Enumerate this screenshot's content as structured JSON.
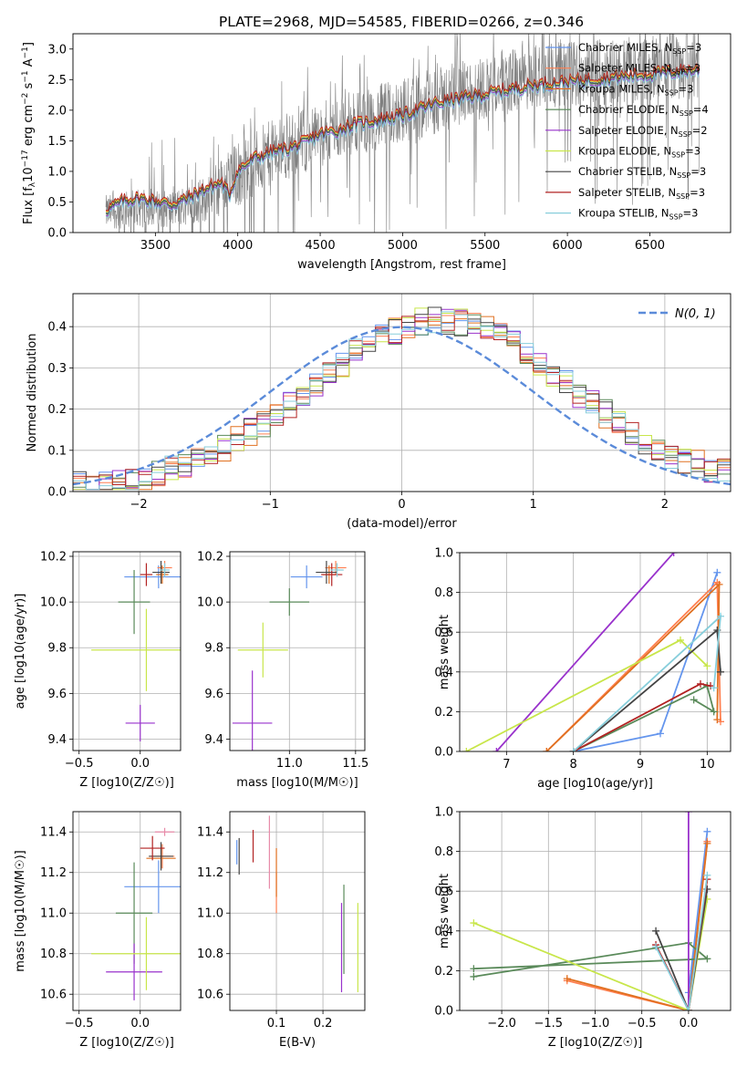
{
  "page_title": "PLATE=2968, MJD=54585, FIBERID=0266, z=0.346",
  "chart_data": [
    {
      "id": "spectrum",
      "type": "line",
      "xlabel": "wavelength [Angstrom, rest frame]",
      "ylabel": "Flux [f_λ 10^-17 erg cm^-2 s^-1 A^-1]",
      "xlim": [
        3000,
        6990
      ],
      "ylim": [
        0,
        3.25
      ],
      "xticks": [
        3500,
        4000,
        4500,
        5000,
        5500,
        6000,
        6500
      ],
      "yticks": [
        0.0,
        0.5,
        1.0,
        1.5,
        2.0,
        2.5,
        3.0
      ],
      "grid": false,
      "legend_position": "top-right",
      "data_range": [
        3200,
        6800
      ],
      "data_continuum": [
        [
          3200,
          0.33
        ],
        [
          3400,
          0.4
        ],
        [
          3600,
          0.38
        ],
        [
          3800,
          0.55
        ],
        [
          4000,
          0.95
        ],
        [
          4200,
          1.3
        ],
        [
          4400,
          1.5
        ],
        [
          4600,
          1.7
        ],
        [
          4800,
          1.85
        ],
        [
          5000,
          2.0
        ],
        [
          5200,
          2.15
        ],
        [
          5400,
          2.3
        ],
        [
          5600,
          2.45
        ],
        [
          5800,
          2.55
        ],
        [
          6000,
          2.6
        ],
        [
          6200,
          2.62
        ],
        [
          6400,
          2.65
        ],
        [
          6600,
          2.7
        ],
        [
          6800,
          2.72
        ]
      ],
      "series": [
        {
          "name": "Chabrier MILES, N_SSP=3",
          "color": "#6495ed"
        },
        {
          "name": "Salpeter MILES, N_SSP=3",
          "color": "#ff7f50"
        },
        {
          "name": "Kroupa MILES, N_SSP=3",
          "color": "#e07020"
        },
        {
          "name": "Chabrier ELODIE, N_SSP=4",
          "color": "#5a8a5a"
        },
        {
          "name": "Salpeter ELODIE, N_SSP=2",
          "color": "#9932cc"
        },
        {
          "name": "Kroupa ELODIE, N_SSP=3",
          "color": "#c8e64a"
        },
        {
          "name": "Chabrier STELIB, N_SSP=3",
          "color": "#444444"
        },
        {
          "name": "Salpeter STELIB, N_SSP=3",
          "color": "#b22222"
        },
        {
          "name": "Kroupa STELIB, N_SSP=3",
          "color": "#87cedb"
        }
      ],
      "model_continuum": [
        [
          3200,
          0.35
        ],
        [
          3300,
          0.5
        ],
        [
          3400,
          0.55
        ],
        [
          3500,
          0.5
        ],
        [
          3600,
          0.45
        ],
        [
          3700,
          0.55
        ],
        [
          3800,
          0.7
        ],
        [
          3900,
          0.8
        ],
        [
          3950,
          0.6
        ],
        [
          4000,
          1.0
        ],
        [
          4100,
          1.2
        ],
        [
          4200,
          1.3
        ],
        [
          4300,
          1.35
        ],
        [
          4400,
          1.45
        ],
        [
          4500,
          1.6
        ],
        [
          4600,
          1.65
        ],
        [
          4700,
          1.75
        ],
        [
          4800,
          1.8
        ],
        [
          4900,
          1.85
        ],
        [
          5000,
          1.9
        ],
        [
          5100,
          2.0
        ],
        [
          5200,
          2.1
        ],
        [
          5300,
          2.15
        ],
        [
          5400,
          2.2
        ],
        [
          5500,
          2.25
        ],
        [
          5600,
          2.3
        ],
        [
          5800,
          2.4
        ],
        [
          6000,
          2.45
        ],
        [
          6200,
          2.5
        ],
        [
          6400,
          2.55
        ],
        [
          6600,
          2.6
        ],
        [
          6800,
          2.65
        ]
      ]
    },
    {
      "id": "residuals",
      "type": "line",
      "xlabel": "(data-model)/error",
      "ylabel": "Normed distribution",
      "xlim": [
        -2.5,
        2.5
      ],
      "ylim": [
        0,
        0.48
      ],
      "xticks": [
        -2,
        -1,
        0,
        1,
        2
      ],
      "yticks": [
        0.0,
        0.1,
        0.2,
        0.3,
        0.4
      ],
      "grid": true,
      "legend_position": "top-right",
      "legend_label": "N(0, 1)",
      "gaussian_color": "#5b8bd9"
    },
    {
      "id": "age-vs-Z",
      "type": "scatter",
      "xlabel": "Z [log10(Z/Z☉)]",
      "ylabel": "age [log10(age/yr)]",
      "xlim": [
        -0.55,
        0.33
      ],
      "ylim": [
        9.35,
        10.22
      ],
      "xticks": [
        -0.5,
        0.0
      ],
      "yticks": [
        9.4,
        9.6,
        9.8,
        10.0,
        10.2
      ],
      "grid": true,
      "errorbars": [
        {
          "x": 0.15,
          "y": 10.11,
          "xerr": 0.28,
          "yerr": 0.05,
          "color": "#6495ed"
        },
        {
          "x": 0.2,
          "y": 10.15,
          "xerr": 0.06,
          "yerr": 0.03,
          "color": "#ff7f50"
        },
        {
          "x": 0.18,
          "y": 10.12,
          "xerr": 0.05,
          "yerr": 0.04,
          "color": "#e07020"
        },
        {
          "x": -0.05,
          "y": 10.0,
          "xerr": 0.13,
          "yerr": 0.14,
          "color": "#5a8a5a"
        },
        {
          "x": 0.0,
          "y": 9.47,
          "xerr": 0.12,
          "yerr": 0.08,
          "color": "#9932cc"
        },
        {
          "x": 0.05,
          "y": 9.79,
          "xerr": 0.45,
          "yerr": 0.18,
          "color": "#c8e64a"
        },
        {
          "x": 0.17,
          "y": 10.13,
          "xerr": 0.07,
          "yerr": 0.05,
          "color": "#444444"
        },
        {
          "x": 0.05,
          "y": 10.12,
          "xerr": 0.05,
          "yerr": 0.05,
          "color": "#b22222"
        },
        {
          "x": 0.2,
          "y": 10.14,
          "xerr": 0.04,
          "yerr": 0.03,
          "color": "#87cedb"
        }
      ]
    },
    {
      "id": "age-vs-mass",
      "type": "scatter",
      "xlabel": "mass [log10(M/M☉)]",
      "ylabel": "",
      "xlim": [
        10.55,
        11.57
      ],
      "ylim": [
        9.35,
        10.22
      ],
      "xticks": [
        11.0,
        11.5
      ],
      "yticks": [
        9.4,
        9.6,
        9.8,
        10.0,
        10.2
      ],
      "grid": true,
      "errorbars": [
        {
          "x": 11.13,
          "y": 10.11,
          "xerr": 0.12,
          "yerr": 0.05,
          "color": "#6495ed"
        },
        {
          "x": 11.35,
          "y": 10.15,
          "xerr": 0.08,
          "yerr": 0.03,
          "color": "#ff7f50"
        },
        {
          "x": 11.3,
          "y": 10.12,
          "xerr": 0.05,
          "yerr": 0.04,
          "color": "#e07020"
        },
        {
          "x": 11.0,
          "y": 10.0,
          "xerr": 0.15,
          "yerr": 0.06,
          "color": "#5a8a5a"
        },
        {
          "x": 10.72,
          "y": 9.47,
          "xerr": 0.15,
          "yerr": 0.23,
          "color": "#9932cc"
        },
        {
          "x": 10.8,
          "y": 9.79,
          "xerr": 0.19,
          "yerr": 0.12,
          "color": "#c8e64a"
        },
        {
          "x": 11.28,
          "y": 10.13,
          "xerr": 0.08,
          "yerr": 0.05,
          "color": "#444444"
        },
        {
          "x": 11.32,
          "y": 10.12,
          "xerr": 0.08,
          "yerr": 0.05,
          "color": "#b22222"
        },
        {
          "x": 11.36,
          "y": 10.14,
          "xerr": 0.05,
          "yerr": 0.03,
          "color": "#87cedb"
        }
      ]
    },
    {
      "id": "weight-vs-age",
      "type": "line",
      "xlabel": "age [log10(age/yr)]",
      "ylabel": "mass weight",
      "xlim": [
        6.3,
        10.35
      ],
      "ylim": [
        0,
        1.0
      ],
      "xticks": [
        7,
        8,
        9,
        10
      ],
      "yticks": [
        0.0,
        0.2,
        0.4,
        0.6,
        0.8,
        1.0
      ],
      "grid": true,
      "series": [
        {
          "color": "#6495ed",
          "points": [
            [
              8.0,
              0.0
            ],
            [
              9.3,
              0.09
            ],
            [
              10.15,
              0.9
            ]
          ]
        },
        {
          "color": "#ff7f50",
          "points": [
            [
              7.6,
              0.0
            ],
            [
              10.15,
              0.85
            ],
            [
              10.2,
              0.15
            ]
          ]
        },
        {
          "color": "#e07020",
          "points": [
            [
              7.6,
              0.0
            ],
            [
              10.18,
              0.84
            ],
            [
              10.15,
              0.16
            ]
          ]
        },
        {
          "color": "#5a8a5a",
          "points": [
            [
              8.0,
              0.0
            ],
            [
              10.0,
              0.33
            ],
            [
              10.1,
              0.2
            ],
            [
              9.8,
              0.26
            ]
          ]
        },
        {
          "color": "#9932cc",
          "points": [
            [
              6.85,
              0.0
            ],
            [
              9.5,
              1.0
            ]
          ]
        },
        {
          "color": "#c8e64a",
          "points": [
            [
              6.4,
              0.0
            ],
            [
              9.6,
              0.56
            ],
            [
              10.0,
              0.43
            ]
          ]
        },
        {
          "color": "#444444",
          "points": [
            [
              8.0,
              0.0
            ],
            [
              10.15,
              0.61
            ],
            [
              10.2,
              0.4
            ]
          ]
        },
        {
          "color": "#b22222",
          "points": [
            [
              8.0,
              0.0
            ],
            [
              9.9,
              0.34
            ],
            [
              10.05,
              0.33
            ]
          ]
        },
        {
          "color": "#87cedb",
          "points": [
            [
              8.0,
              0.0
            ],
            [
              10.2,
              0.68
            ],
            [
              10.1,
              0.32
            ]
          ]
        }
      ]
    },
    {
      "id": "mass-vs-Z",
      "type": "scatter",
      "xlabel": "Z [log10(Z/Z☉)]",
      "ylabel": "mass [log10(M/M☉)]",
      "xlim": [
        -0.55,
        0.33
      ],
      "ylim": [
        10.52,
        11.5
      ],
      "xticks": [
        -0.5,
        0.0
      ],
      "yticks": [
        10.6,
        10.8,
        11.0,
        11.2,
        11.4
      ],
      "grid": true,
      "errorbars": [
        {
          "x": 0.15,
          "y": 11.13,
          "xerr": 0.28,
          "yerr": 0.13,
          "color": "#6495ed"
        },
        {
          "x": 0.18,
          "y": 11.28,
          "xerr": 0.1,
          "yerr": 0.06,
          "color": "#ff7f50"
        },
        {
          "x": 0.17,
          "y": 11.27,
          "xerr": 0.12,
          "yerr": 0.05,
          "color": "#e07020"
        },
        {
          "x": -0.05,
          "y": 11.0,
          "xerr": 0.15,
          "yerr": 0.25,
          "color": "#5a8a5a"
        },
        {
          "x": -0.05,
          "y": 10.71,
          "xerr": 0.23,
          "yerr": 0.14,
          "color": "#9932cc"
        },
        {
          "x": 0.05,
          "y": 10.8,
          "xerr": 0.45,
          "yerr": 0.18,
          "color": "#c8e64a"
        },
        {
          "x": 0.17,
          "y": 11.28,
          "xerr": 0.1,
          "yerr": 0.07,
          "color": "#444444"
        },
        {
          "x": 0.1,
          "y": 11.32,
          "xerr": 0.1,
          "yerr": 0.06,
          "color": "#b22222"
        },
        {
          "x": 0.2,
          "y": 11.4,
          "xerr": 0.08,
          "yerr": 0.02,
          "color": "#e88aa8"
        }
      ]
    },
    {
      "id": "mass-vs-EBV",
      "type": "scatter",
      "xlabel": "E(B-V)",
      "ylabel": "",
      "xlim": [
        0.0,
        0.29
      ],
      "ylim": [
        10.52,
        11.5
      ],
      "xticks": [
        0.1,
        0.2
      ],
      "yticks": [
        10.6,
        10.8,
        11.0,
        11.2,
        11.4
      ],
      "grid": true,
      "errorbars": [
        {
          "x": 0.015,
          "y": 11.3,
          "xerr": 0,
          "yerr": 0.06,
          "color": "#6495ed"
        },
        {
          "x": 0.1,
          "y": 11.1,
          "xerr": 0,
          "yerr": 0.1,
          "color": "#ff7f50"
        },
        {
          "x": 0.1,
          "y": 11.2,
          "xerr": 0,
          "yerr": 0.12,
          "color": "#e07020"
        },
        {
          "x": 0.245,
          "y": 10.92,
          "xerr": 0,
          "yerr": 0.22,
          "color": "#5a8a5a"
        },
        {
          "x": 0.24,
          "y": 10.83,
          "xerr": 0,
          "yerr": 0.22,
          "color": "#9932cc"
        },
        {
          "x": 0.275,
          "y": 10.83,
          "xerr": 0,
          "yerr": 0.22,
          "color": "#c8e64a"
        },
        {
          "x": 0.02,
          "y": 11.28,
          "xerr": 0,
          "yerr": 0.09,
          "color": "#444444"
        },
        {
          "x": 0.05,
          "y": 11.33,
          "xerr": 0,
          "yerr": 0.08,
          "color": "#b22222"
        },
        {
          "x": 0.085,
          "y": 11.3,
          "xerr": 0,
          "yerr": 0.18,
          "color": "#e88aa8"
        }
      ]
    },
    {
      "id": "weight-vs-Z",
      "type": "line",
      "xlabel": "Z [log10(Z/Z☉)]",
      "ylabel": "mass weight",
      "xlim": [
        -2.45,
        0.45
      ],
      "ylim": [
        0,
        1.0
      ],
      "xticks": [
        -2.0,
        -1.5,
        -1.0,
        -0.5,
        0.0
      ],
      "yticks": [
        0.0,
        0.2,
        0.4,
        0.6,
        0.8,
        1.0
      ],
      "grid": true,
      "series": [
        {
          "color": "#6495ed",
          "points": [
            [
              0.0,
              0.0
            ],
            [
              0.2,
              0.9
            ],
            [
              0.0,
              0.09
            ]
          ]
        },
        {
          "color": "#ff7f50",
          "points": [
            [
              -1.3,
              0.15
            ],
            [
              0.0,
              0.0
            ],
            [
              0.2,
              0.85
            ]
          ]
        },
        {
          "color": "#e07020",
          "points": [
            [
              -1.3,
              0.16
            ],
            [
              0.0,
              0.0
            ],
            [
              0.2,
              0.84
            ]
          ]
        },
        {
          "color": "#5a8a5a",
          "points": [
            [
              -2.3,
              0.17
            ],
            [
              0.0,
              0.34
            ],
            [
              0.2,
              0.26
            ],
            [
              -2.3,
              0.21
            ]
          ]
        },
        {
          "color": "#9932cc",
          "points": [
            [
              0.0,
              0.0
            ],
            [
              0.0,
              1.0
            ]
          ]
        },
        {
          "color": "#c8e64a",
          "points": [
            [
              -2.3,
              0.44
            ],
            [
              0.0,
              0.0
            ],
            [
              0.2,
              0.56
            ]
          ]
        },
        {
          "color": "#444444",
          "points": [
            [
              -0.35,
              0.4
            ],
            [
              0.0,
              0.0
            ],
            [
              0.2,
              0.61
            ]
          ]
        },
        {
          "color": "#b22222",
          "points": [
            [
              -0.35,
              0.33
            ],
            [
              0.0,
              0.0
            ],
            [
              0.2,
              0.66
            ]
          ]
        },
        {
          "color": "#87cedb",
          "points": [
            [
              -0.35,
              0.32
            ],
            [
              0.0,
              0.0
            ],
            [
              0.2,
              0.68
            ]
          ]
        }
      ]
    }
  ]
}
